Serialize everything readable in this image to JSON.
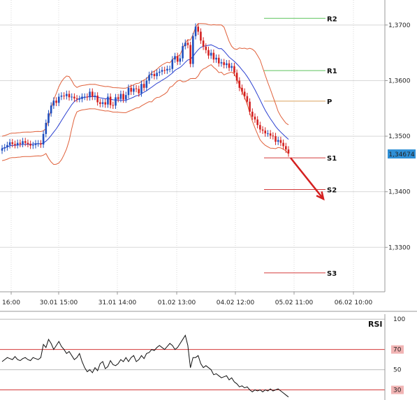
{
  "chart_data": [
    {
      "type": "line",
      "subtype": "candlestick",
      "x_ticks": [
        "16:00",
        "30.01 15:00",
        "31.01 14:00",
        "01.02 13:00",
        "04.02 12:00",
        "05.02 11:00",
        "06.02 10:00"
      ],
      "y_ticks": [
        "1,3700",
        "1,3600",
        "1,3500",
        "1,3400",
        "1,3300"
      ],
      "y_tick_values": [
        1.37,
        1.36,
        1.35,
        1.34,
        1.33
      ],
      "ylim": [
        1.322,
        1.3745
      ],
      "current_price": {
        "label": "1,34674",
        "value": 1.34674,
        "color": "#2e8fd6"
      },
      "pivots": [
        {
          "label": "R2",
          "value": 1.3712,
          "color": "#5cc35c"
        },
        {
          "label": "R1",
          "value": 1.3618,
          "color": "#5cc35c"
        },
        {
          "label": "P",
          "value": 1.3563,
          "color": "#d9a25c"
        },
        {
          "label": "S1",
          "value": 1.3461,
          "color": "#d43a3a"
        },
        {
          "label": "S2",
          "value": 1.3404,
          "color": "#d43a3a"
        },
        {
          "label": "S3",
          "value": 1.3254,
          "color": "#d43a3a"
        }
      ],
      "forecast_arrow": {
        "from": 1.3461,
        "to": 1.3387,
        "color": "#d42020"
      },
      "colors": {
        "up": "#1f4fbf",
        "down": "#d42020",
        "bollinger": "#e0603a",
        "ma": "#2a3fd0",
        "grid": "#d8d8d8"
      },
      "close_series": [
        1.3478,
        1.348,
        1.3484,
        1.3489,
        1.3486,
        1.3484,
        1.3488,
        1.3486,
        1.3491,
        1.3488,
        1.3486,
        1.3483,
        1.3484,
        1.3487,
        1.3487,
        1.3485,
        1.3504,
        1.3524,
        1.3541,
        1.3555,
        1.3564,
        1.356,
        1.3571,
        1.3573,
        1.3572,
        1.3576,
        1.357,
        1.3571,
        1.3568,
        1.3567,
        1.3567,
        1.3571,
        1.3571,
        1.357,
        1.358,
        1.3571,
        1.3573,
        1.3561,
        1.3558,
        1.3561,
        1.3557,
        1.3571,
        1.3556,
        1.3555,
        1.357,
        1.3567,
        1.3576,
        1.3566,
        1.3574,
        1.3587,
        1.358,
        1.3586,
        1.3585,
        1.3577,
        1.3594,
        1.3587,
        1.36,
        1.361,
        1.3612,
        1.3608,
        1.3614,
        1.3616,
        1.3619,
        1.3618,
        1.3621,
        1.3621,
        1.3638,
        1.3644,
        1.3634,
        1.364,
        1.3662,
        1.3668,
        1.3664,
        1.363,
        1.368,
        1.3697,
        1.3688,
        1.3672,
        1.3661,
        1.3655,
        1.3645,
        1.365,
        1.3638,
        1.3641,
        1.3631,
        1.3633,
        1.3628,
        1.3631,
        1.3623,
        1.3626,
        1.3614,
        1.36,
        1.3587,
        1.358,
        1.3572,
        1.3562,
        1.3544,
        1.3535,
        1.353,
        1.352,
        1.3512,
        1.351,
        1.3505,
        1.3505,
        1.3501,
        1.35,
        1.349,
        1.3493,
        1.3488,
        1.3482,
        1.3476,
        1.3469
      ]
    },
    {
      "type": "line",
      "title": "RSI",
      "y_ticks": [
        "100",
        "70",
        "50",
        "30"
      ],
      "y_tick_values": [
        100,
        70,
        50,
        30
      ],
      "ylim": [
        20,
        105
      ],
      "levels": [
        {
          "label": "70",
          "value": 70,
          "color": "#d43a3a"
        },
        {
          "label": "30",
          "value": 30,
          "color": "#d43a3a"
        }
      ],
      "rsi_series": [
        58,
        60,
        62,
        61,
        60,
        63,
        60,
        59,
        61,
        62,
        60,
        59,
        62,
        61,
        60,
        62,
        75,
        72,
        80,
        76,
        70,
        74,
        78,
        73,
        70,
        66,
        68,
        64,
        60,
        62,
        66,
        58,
        52,
        48,
        50,
        47,
        52,
        49,
        56,
        58,
        51,
        53,
        59,
        55,
        54,
        56,
        60,
        58,
        62,
        58,
        62,
        64,
        58,
        60,
        64,
        61,
        66,
        67,
        70,
        69,
        72,
        74,
        72,
        70,
        73,
        76,
        74,
        70,
        72,
        76,
        80,
        84,
        74,
        52,
        62,
        62,
        64,
        56,
        52,
        54,
        52,
        50,
        45,
        46,
        44,
        42,
        43,
        44,
        40,
        42,
        38,
        36,
        33,
        34,
        32,
        33,
        30,
        28,
        30,
        29,
        30,
        28,
        30,
        29,
        31,
        29,
        30,
        31,
        29,
        27,
        25,
        23
      ]
    }
  ]
}
